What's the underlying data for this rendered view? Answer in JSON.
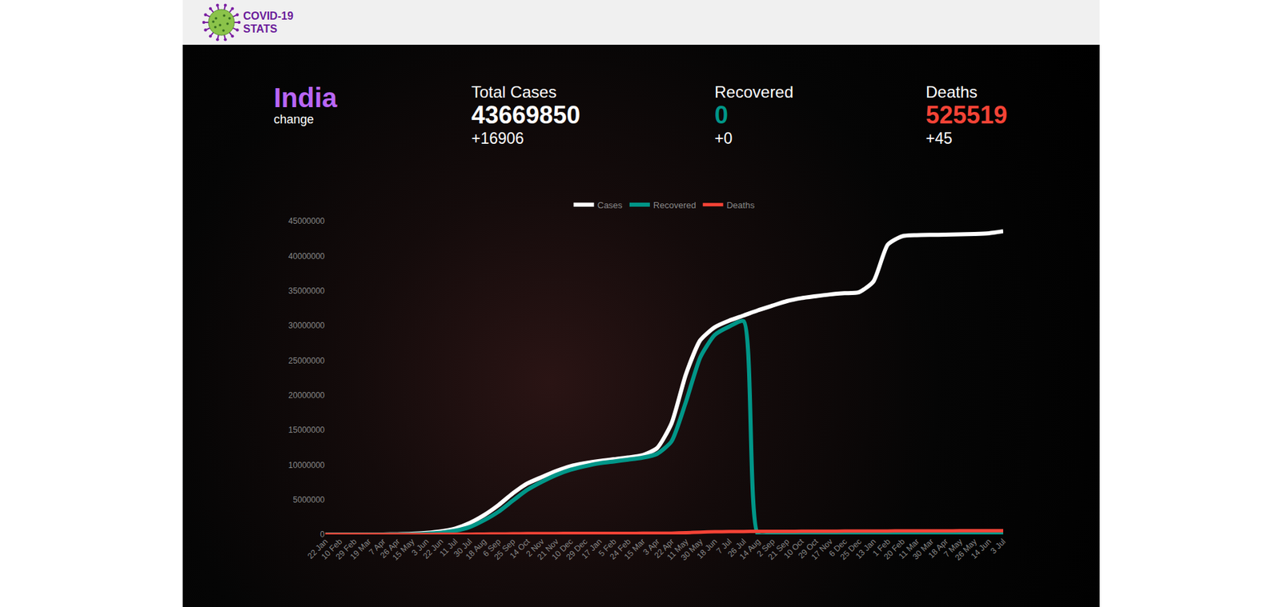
{
  "header": {
    "logo_text": [
      "COVID-19",
      "STATS"
    ]
  },
  "country": {
    "name": "India",
    "link": "change"
  },
  "stats": [
    {
      "label": "Total Cases",
      "value": 43669850,
      "change": "+16906",
      "color": "#ffffff"
    },
    {
      "label": "Recovered",
      "value": 0,
      "change": "+0",
      "color": "#009688"
    },
    {
      "label": "Deaths",
      "value": 525519,
      "change": "+45",
      "color": "#f44336"
    }
  ],
  "chart_data": {
    "type": "line",
    "categories": [
      "22 Jan",
      "10 Feb",
      "29 Feb",
      "19 Mar",
      "7 Apr",
      "26 Apr",
      "15 May",
      "3 Jun",
      "22 Jun",
      "11 Jul",
      "30 Jul",
      "18 Aug",
      "6 Sep",
      "25 Sep",
      "14 Oct",
      "2 Nov",
      "21 Nov",
      "10 Dec",
      "29 Dec",
      "17 Jan",
      "5 Feb",
      "24 Feb",
      "15 Mar",
      "3 Apr",
      "22 Apr",
      "11 May",
      "30 May",
      "18 Jun",
      "7 Jul",
      "26 Jul",
      "14 Aug",
      "2 Sep",
      "21 Sep",
      "10 Oct",
      "29 Oct",
      "17 Nov",
      "6 Dec",
      "25 Dec",
      "13 Jan",
      "1 Feb",
      "20 Feb",
      "11 Mar",
      "30 Mar",
      "18 Apr",
      "7 May",
      "26 May",
      "14 Jun",
      "3 Jul"
    ],
    "series": [
      {
        "name": "Cases",
        "color": "#ffffff",
        "values": [
          0,
          3,
          3,
          194,
          5311,
          27890,
          85784,
          216824,
          440215,
          849553,
          1638870,
          2767273,
          4204613,
          5903932,
          7307097,
          8229313,
          9095806,
          9796769,
          10224303,
          10557985,
          10802591,
          11046914,
          11385339,
          12392260,
          15930965,
          22992517,
          27894800,
          29762793,
          30709557,
          31440951,
          32192576,
          32857937,
          33504534,
          33935309,
          34215653,
          34466598,
          34641561,
          34786802,
          36317927,
          41630885,
          42824064,
          42979730,
          43024440,
          43045527,
          43105401,
          43144820,
          43245517,
          43531650
        ]
      },
      {
        "name": "Recovered",
        "color": "#009688",
        "values": [
          0,
          0,
          3,
          15,
          421,
          6523,
          30258,
          104071,
          248190,
          534621,
          1057805,
          2037870,
          3250429,
          4849584,
          6394068,
          7544798,
          8535823,
          9290188,
          9807569,
          10216558,
          10480455,
          10739894,
          11029009,
          11569241,
          13354878,
          19027304,
          25454320,
          28643194,
          29852082,
          30633823,
          0,
          0,
          0,
          0,
          0,
          0,
          0,
          0,
          0,
          0,
          0,
          0,
          0,
          0,
          0,
          0,
          0,
          0
        ]
      },
      {
        "name": "Deaths",
        "color": "#f44336",
        "values": [
          0,
          0,
          0,
          6,
          166,
          881,
          2753,
          6075,
          13699,
          22687,
          35747,
          52889,
          71642,
          93379,
          112161,
          123139,
          133227,
          142190,
          148153,
          152093,
          154823,
          156938,
          158892,
          163396,
          182553,
          249992,
          325972,
          381903,
          405028,
          421382,
          431642,
          439895,
          446050,
          452651,
          459652,
          469247,
          475434,
          480290,
          485350,
          494091,
          506520,
          512109,
          521488,
          522223,
          523843,
          524241,
          524723,
          525139
        ]
      }
    ],
    "ylim": [
      0,
      45000000
    ],
    "yticks": [
      0,
      5000000,
      10000000,
      15000000,
      20000000,
      25000000,
      30000000,
      35000000,
      40000000,
      45000000
    ],
    "grid": false,
    "legend": "top"
  }
}
